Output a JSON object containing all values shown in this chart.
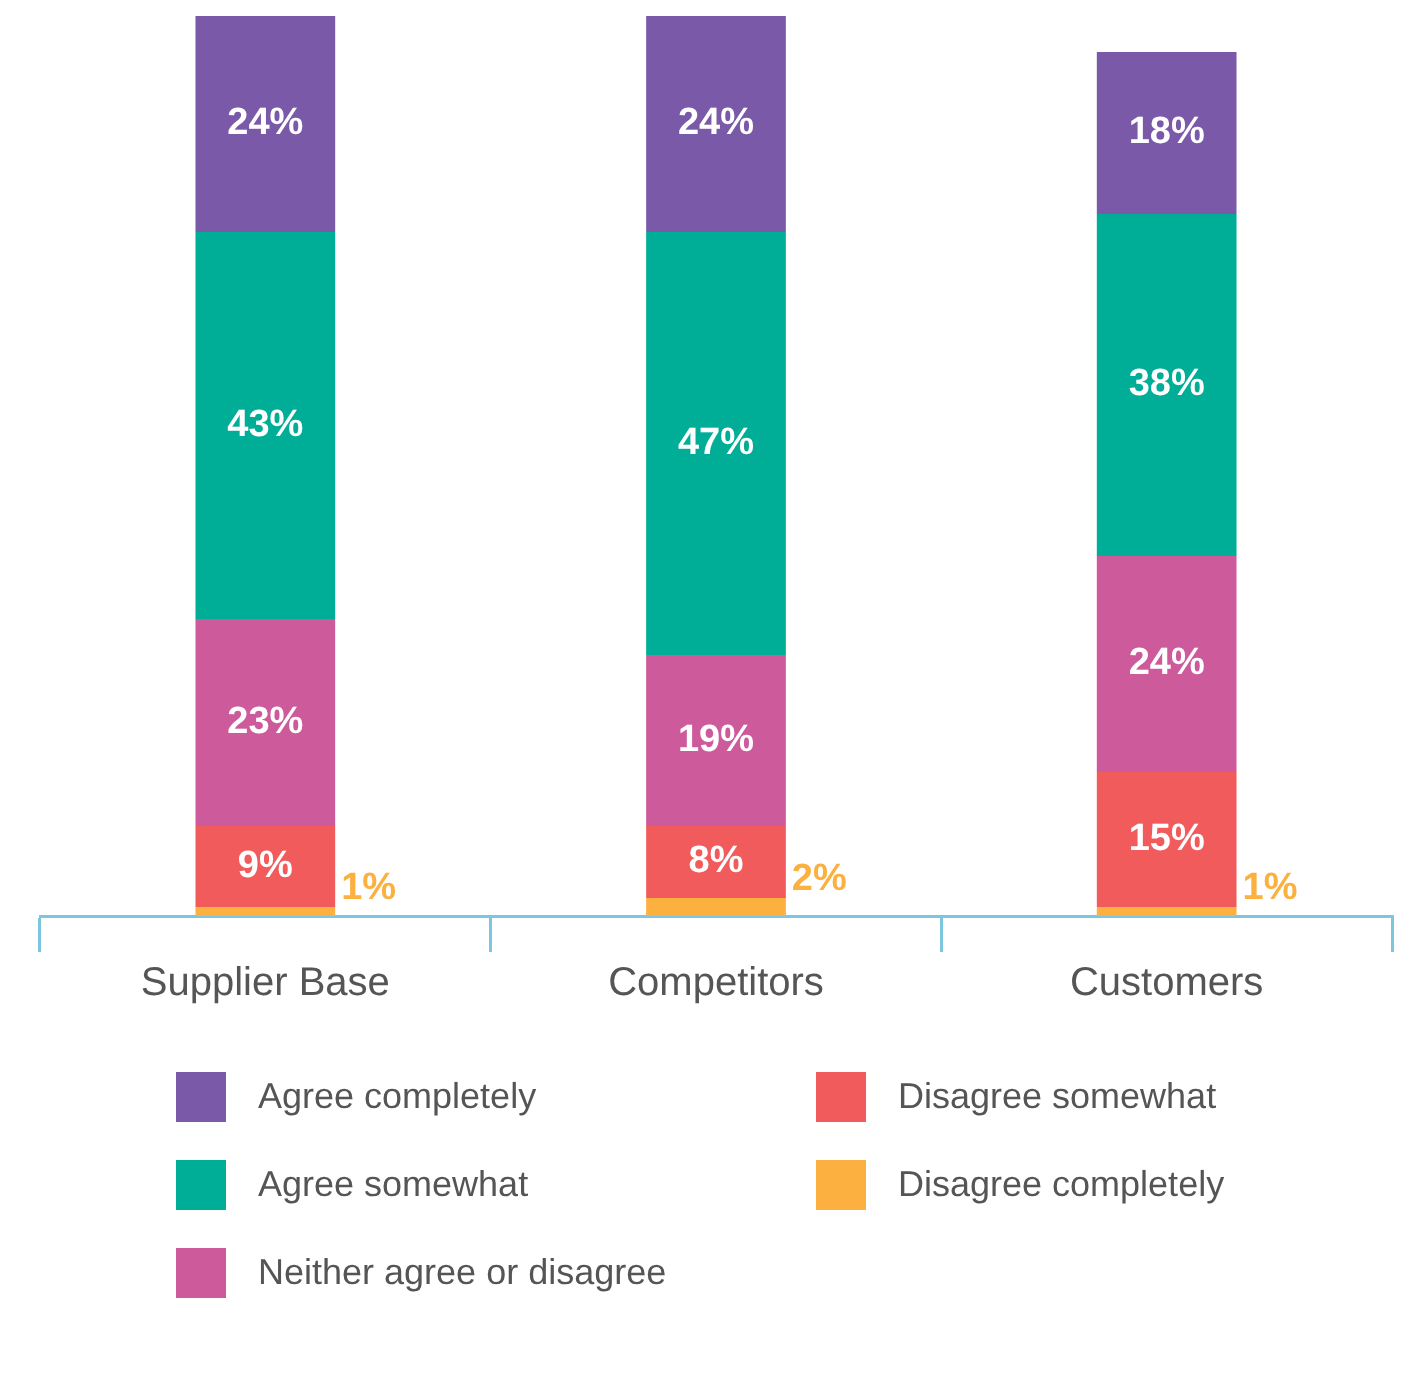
{
  "chart_data": {
    "type": "bar",
    "stacked": true,
    "legend": "bottom",
    "categories": [
      "Supplier Base",
      "Competitors",
      "Customers"
    ],
    "series": [
      {
        "name": "Disagree completely",
        "color": "#fbb040",
        "values": [
          1,
          2,
          1
        ],
        "value_labels": [
          "1%",
          "2%",
          "1%"
        ]
      },
      {
        "name": "Disagree somewhat",
        "color": "#f15b5b",
        "values": [
          9,
          8,
          15
        ],
        "value_labels": [
          "9%",
          "8%",
          "15%"
        ]
      },
      {
        "name": "Neither agree or disagree",
        "color": "#cd5a9b",
        "values": [
          23,
          19,
          24
        ],
        "value_labels": [
          "23%",
          "19%",
          "24%"
        ]
      },
      {
        "name": "Agree somewhat",
        "color": "#00ae98",
        "values": [
          43,
          47,
          38
        ],
        "value_labels": [
          "43%",
          "47%",
          "38%"
        ]
      },
      {
        "name": "Agree completely",
        "color": "#7a5aa8",
        "values": [
          24,
          24,
          18
        ],
        "value_labels": [
          "24%",
          "24%",
          "18%"
        ]
      }
    ]
  }
}
